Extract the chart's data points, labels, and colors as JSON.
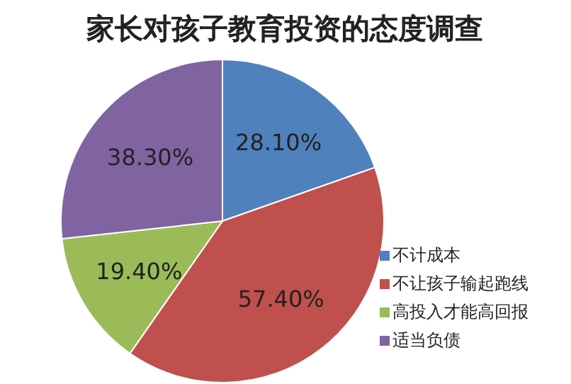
{
  "chart_data": {
    "type": "pie",
    "title": "家长对孩子教育投资的态度调查",
    "categories": [
      "不计成本",
      "不让孩子输起跑线",
      "高投入才能高回报",
      "适当负债"
    ],
    "values": [
      28.1,
      57.4,
      19.4,
      38.3
    ],
    "value_labels": [
      "28.10%",
      "57.40%",
      "19.40%",
      "38.30%"
    ],
    "colors": [
      "#4f81bd",
      "#c0504d",
      "#9bbb59",
      "#8064a2"
    ],
    "legend": "right"
  }
}
